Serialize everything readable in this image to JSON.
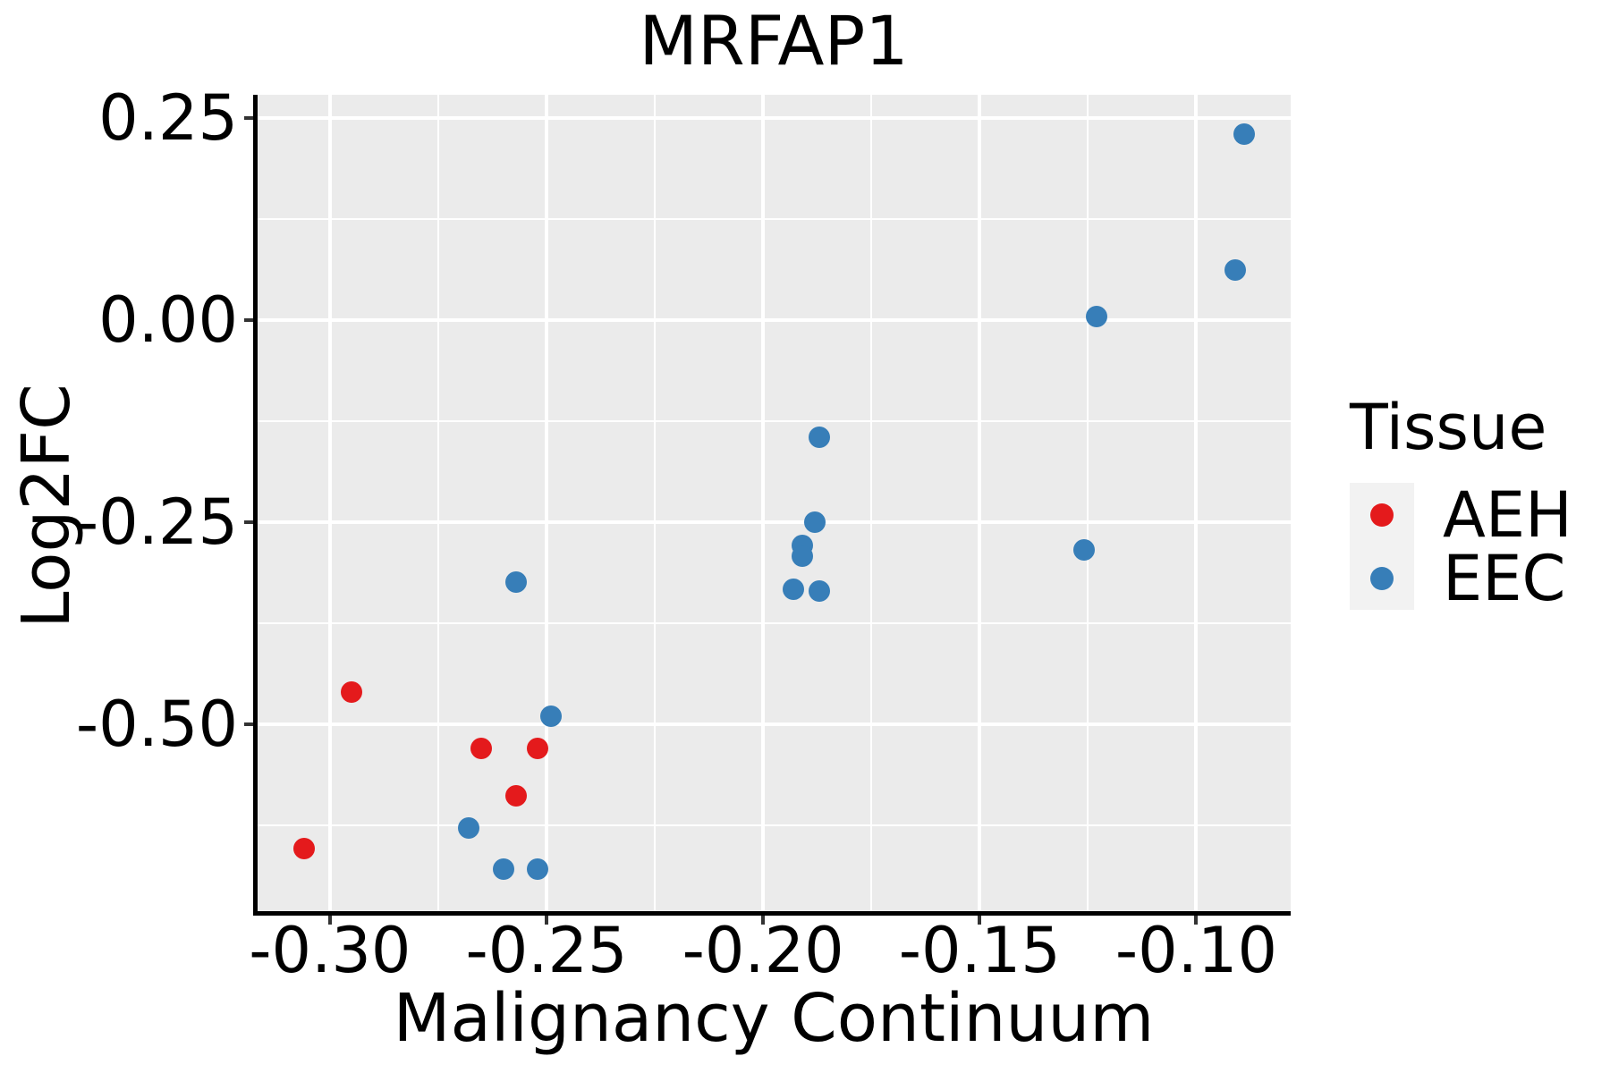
{
  "chart_data": {
    "type": "scatter",
    "title": "MRFAP1",
    "xlabel": "Malignancy Continuum",
    "ylabel": "Log2FC",
    "xlim": [
      -0.3167,
      -0.0782
    ],
    "ylim": [
      -0.7307,
      0.2793
    ],
    "x_ticks": {
      "values": [
        -0.3,
        -0.25,
        -0.2,
        -0.15,
        -0.1
      ],
      "labels": [
        "-0.30",
        "-0.25",
        "-0.20",
        "-0.15",
        "-0.10"
      ]
    },
    "y_ticks": {
      "values": [
        0.25,
        0.0,
        -0.25,
        -0.5
      ],
      "labels": [
        "0.25",
        "0.00",
        "-0.25",
        "-0.50"
      ]
    },
    "x_minor": [
      -0.275,
      -0.225,
      -0.175,
      -0.125
    ],
    "y_minor": [
      0.125,
      -0.125,
      -0.375,
      -0.625
    ],
    "grid": "major-and-minor-white-on-grey",
    "panel_bg": "#EBEBEB",
    "legend_position": "right",
    "series": [
      {
        "name": "AEH",
        "color": "#E41A1C",
        "points": [
          [
            -0.306,
            -0.653
          ],
          [
            -0.295,
            -0.46
          ],
          [
            -0.265,
            -0.529
          ],
          [
            -0.252,
            -0.529
          ],
          [
            -0.257,
            -0.588
          ]
        ]
      },
      {
        "name": "EEC",
        "color": "#377EB8",
        "points": [
          [
            -0.268,
            -0.628
          ],
          [
            -0.26,
            -0.679
          ],
          [
            -0.252,
            -0.679
          ],
          [
            -0.257,
            -0.324
          ],
          [
            -0.249,
            -0.489
          ],
          [
            -0.193,
            -0.332
          ],
          [
            -0.187,
            -0.335
          ],
          [
            -0.191,
            -0.278
          ],
          [
            -0.191,
            -0.291
          ],
          [
            -0.188,
            -0.249
          ],
          [
            -0.187,
            -0.144
          ],
          [
            -0.126,
            -0.284
          ],
          [
            -0.123,
            0.005
          ],
          [
            -0.091,
            0.062
          ],
          [
            -0.089,
            0.231
          ]
        ]
      }
    ]
  },
  "legend": {
    "title": "Tissue",
    "key_bg": "#F2F2F2",
    "items": [
      {
        "label": "AEH",
        "color": "#E41A1C"
      },
      {
        "label": "EEC",
        "color": "#377EB8"
      }
    ]
  }
}
